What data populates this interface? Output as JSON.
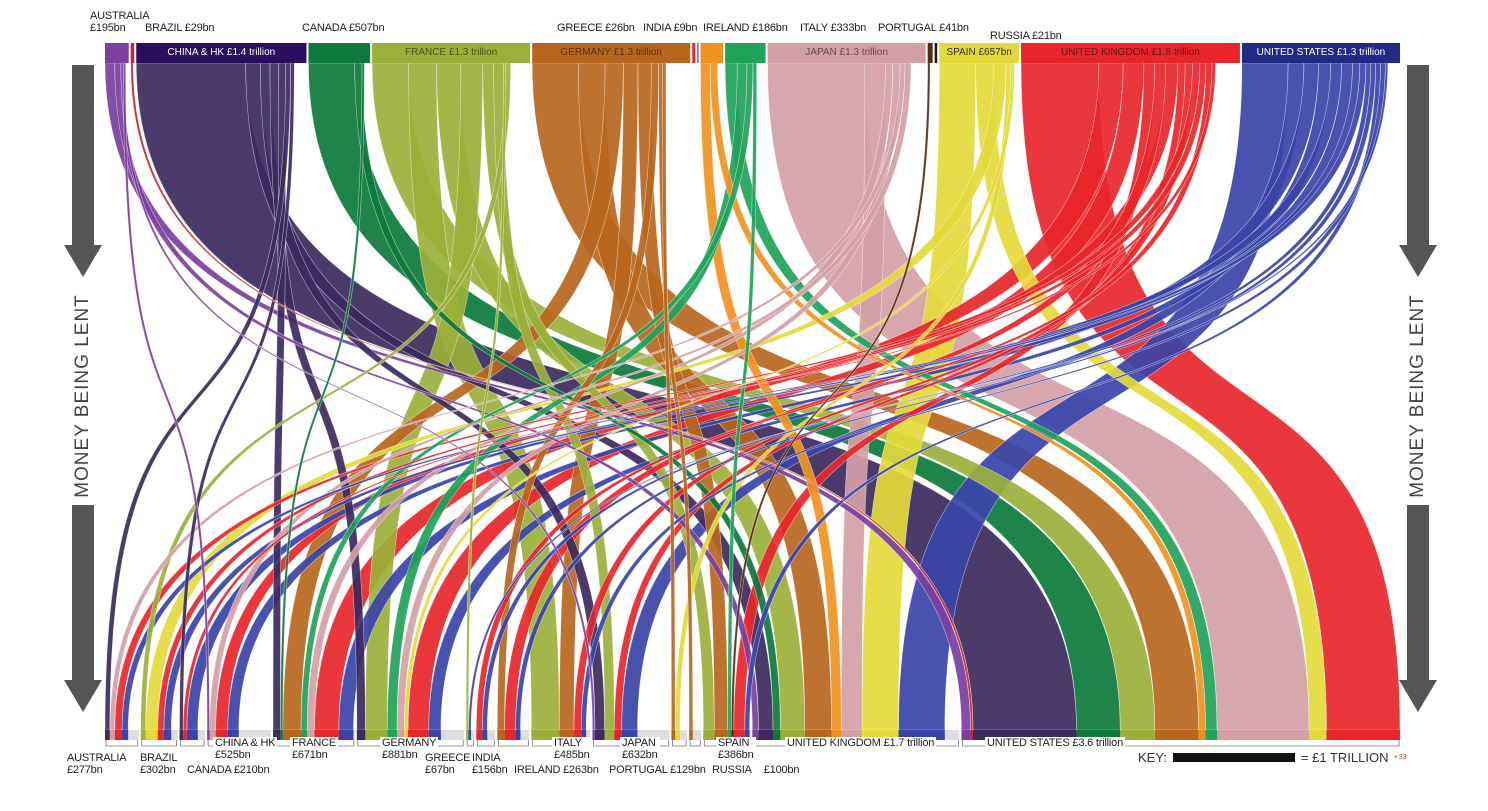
{
  "side_label": "MONEY BEING LENT",
  "key": {
    "label": "KEY:",
    "value_label": "= £1 TRILLION",
    "scale_trillion": 1,
    "source_mark": "• 33"
  },
  "colors": {
    "Australia": "#7b3f9e",
    "Brazil": "#c0282d",
    "China & HK": "#3b2a5e",
    "Canada": "#0b7a3b",
    "France": "#9bb03a",
    "Germany": "#b8661e",
    "Greece": "#e0302a",
    "India": "#2a3a9c",
    "Ireland": "#f0921e",
    "Italy": "#1fa35a",
    "Japan": "#d3a0a6",
    "Portugal": "#5a2a10",
    "Russia": "#1a1a1a",
    "Spain": "#e3da3a",
    "United Kingdom": "#e8262a",
    "United States": "#3a44a8"
  },
  "chart_data": {
    "type": "sankey",
    "title": "",
    "units": "£bn",
    "lenders": [
      {
        "name": "Australia",
        "value": 195,
        "label": "AUSTRALIA",
        "amount": "£195bn",
        "placement": "above"
      },
      {
        "name": "Brazil",
        "value": 29,
        "label": "BRAZIL £29bn",
        "placement": "above"
      },
      {
        "name": "China & HK",
        "value": 1400,
        "label": "CHINA & HK £1.4 trillion",
        "placement": "inside"
      },
      {
        "name": "Canada",
        "value": 507,
        "label": "CANADA £507bn",
        "placement": "above"
      },
      {
        "name": "France",
        "value": 1300,
        "label": "FRANCE £1.3 trillion",
        "placement": "inside"
      },
      {
        "name": "Germany",
        "value": 1300,
        "label": "GERMANY £1.3 trillion",
        "placement": "inside"
      },
      {
        "name": "Greece",
        "value": 26,
        "label": "GREECE £26bn",
        "placement": "above"
      },
      {
        "name": "India",
        "value": 9,
        "label": "INDIA £9bn",
        "placement": "above"
      },
      {
        "name": "Ireland",
        "value": 186,
        "label": "IRELAND £186bn",
        "placement": "above"
      },
      {
        "name": "Italy",
        "value": 333,
        "label": "ITALY £333bn",
        "placement": "above"
      },
      {
        "name": "Japan",
        "value": 1300,
        "label": "JAPAN £1.3 trillion",
        "placement": "inside"
      },
      {
        "name": "Portugal",
        "value": 41,
        "label": "PORTUGAL £41bn",
        "placement": "above"
      },
      {
        "name": "Russia",
        "value": 21,
        "label": "RUSSIA £21bn",
        "placement": "above"
      },
      {
        "name": "Spain",
        "value": 657,
        "label": "SPAIN £657bn",
        "placement": "inside"
      },
      {
        "name": "United Kingdom",
        "value": 1800,
        "label": "UNITED KINGDOM £1.8 trillion",
        "placement": "inside"
      },
      {
        "name": "United States",
        "value": 1300,
        "label": "UNITED STATES £1.3 trillion",
        "placement": "inside"
      }
    ],
    "borrowers": [
      {
        "name": "Australia",
        "value": 277,
        "label": "AUSTRALIA",
        "amount": "£277bn"
      },
      {
        "name": "Brazil",
        "value": 302,
        "label": "BRAZIL",
        "amount": "£302bn"
      },
      {
        "name": "Canada",
        "value": 210,
        "label": "CANADA £210bn"
      },
      {
        "name": "China & HK",
        "value": 525,
        "label": "CHINA & HK",
        "amount": "£525bn"
      },
      {
        "name": "France",
        "value": 671,
        "label": "FRANCE",
        "amount": "£671bn"
      },
      {
        "name": "Germany",
        "value": 881,
        "label": "GERMANY",
        "amount": "£881bn"
      },
      {
        "name": "Greece",
        "value": 67,
        "label": "GREECE",
        "amount": "£67bn"
      },
      {
        "name": "India",
        "value": 156,
        "label": "INDIA",
        "amount": "£156bn"
      },
      {
        "name": "Ireland",
        "value": 263,
        "label": "IRELAND £263bn"
      },
      {
        "name": "Italy",
        "value": 485,
        "label": "ITALY",
        "amount": "£485bn"
      },
      {
        "name": "Japan",
        "value": 632,
        "label": "JAPAN",
        "amount": "£632bn"
      },
      {
        "name": "Portugal",
        "value": 129,
        "label": "PORTUGAL £129bn"
      },
      {
        "name": "Russia",
        "value": 100,
        "label": "RUSSIA",
        "amount": "£100bn"
      },
      {
        "name": "Spain",
        "value": 386,
        "label": "SPAIN",
        "amount": "£386bn"
      },
      {
        "name": "United Kingdom",
        "value": 1700,
        "label": "UNITED KINGDOM £1.7 trillion"
      },
      {
        "name": "United States",
        "value": 3600,
        "label": "UNITED STATES £3.6 trillion"
      }
    ],
    "flows_estimated": [
      [
        "Australia",
        "United States",
        80
      ],
      [
        "Australia",
        "United Kingdom",
        50
      ],
      [
        "Australia",
        "Japan",
        20
      ],
      [
        "Australia",
        "China & HK",
        20
      ],
      [
        "Brazil",
        "United States",
        20
      ],
      [
        "China & HK",
        "United States",
        900
      ],
      [
        "China & HK",
        "United Kingdom",
        120
      ],
      [
        "China & HK",
        "Japan",
        80
      ],
      [
        "China & HK",
        "Germany",
        70
      ],
      [
        "China & HK",
        "France",
        60
      ],
      [
        "China & HK",
        "Australia",
        40
      ],
      [
        "China & HK",
        "Canada",
        30
      ],
      [
        "Canada",
        "United States",
        380
      ],
      [
        "Canada",
        "United Kingdom",
        60
      ],
      [
        "Canada",
        "France",
        20
      ],
      [
        "France",
        "United States",
        300
      ],
      [
        "France",
        "Italy",
        230
      ],
      [
        "France",
        "United Kingdom",
        200
      ],
      [
        "France",
        "Germany",
        180
      ],
      [
        "France",
        "Spain",
        90
      ],
      [
        "France",
        "Japan",
        80
      ],
      [
        "France",
        "Greece",
        20
      ],
      [
        "France",
        "Brazil",
        40
      ],
      [
        "Germany",
        "United States",
        380
      ],
      [
        "Germany",
        "United Kingdom",
        220
      ],
      [
        "Germany",
        "France",
        150
      ],
      [
        "Germany",
        "Italy",
        120
      ],
      [
        "Germany",
        "Spain",
        110
      ],
      [
        "Germany",
        "Ireland",
        60
      ],
      [
        "Germany",
        "Russia",
        30
      ],
      [
        "Germany",
        "Portugal",
        30
      ],
      [
        "Ireland",
        "United Kingdom",
        80
      ],
      [
        "Ireland",
        "United States",
        60
      ],
      [
        "Italy",
        "United States",
        100
      ],
      [
        "Italy",
        "Germany",
        80
      ],
      [
        "Italy",
        "France",
        50
      ],
      [
        "Italy",
        "Spain",
        30
      ],
      [
        "Japan",
        "United States",
        800
      ],
      [
        "Japan",
        "United Kingdom",
        170
      ],
      [
        "Japan",
        "France",
        60
      ],
      [
        "Japan",
        "Germany",
        60
      ],
      [
        "Japan",
        "Australia",
        40
      ],
      [
        "Japan",
        "China & HK",
        50
      ],
      [
        "Portugal",
        "Spain",
        20
      ],
      [
        "Spain",
        "United Kingdom",
        300
      ],
      [
        "Spain",
        "United States",
        150
      ],
      [
        "Spain",
        "Brazil",
        100
      ],
      [
        "Spain",
        "Portugal",
        40
      ],
      [
        "Spain",
        "Germany",
        30
      ],
      [
        "United Kingdom",
        "United States",
        640
      ],
      [
        "United Kingdom",
        "France",
        200
      ],
      [
        "United Kingdom",
        "Germany",
        170
      ],
      [
        "United Kingdom",
        "Spain",
        90
      ],
      [
        "United Kingdom",
        "Ireland",
        90
      ],
      [
        "United Kingdom",
        "China & HK",
        100
      ],
      [
        "United Kingdom",
        "Japan",
        60
      ],
      [
        "United Kingdom",
        "Italy",
        60
      ],
      [
        "United Kingdom",
        "Australia",
        60
      ],
      [
        "United Kingdom",
        "Brazil",
        50
      ],
      [
        "United Kingdom",
        "India",
        50
      ],
      [
        "United Kingdom",
        "Canada",
        30
      ],
      [
        "United States",
        "United Kingdom",
        380
      ],
      [
        "United States",
        "Japan",
        130
      ],
      [
        "United States",
        "France",
        120
      ],
      [
        "United States",
        "Germany",
        100
      ],
      [
        "United States",
        "Canada",
        90
      ],
      [
        "United States",
        "China & HK",
        90
      ],
      [
        "United States",
        "Brazil",
        60
      ],
      [
        "United States",
        "Australia",
        50
      ],
      [
        "United States",
        "India",
        40
      ],
      [
        "United States",
        "Ireland",
        40
      ],
      [
        "United States",
        "Spain",
        40
      ],
      [
        "United States",
        "Italy",
        40
      ],
      [
        "United States",
        "Greece",
        20
      ]
    ]
  }
}
